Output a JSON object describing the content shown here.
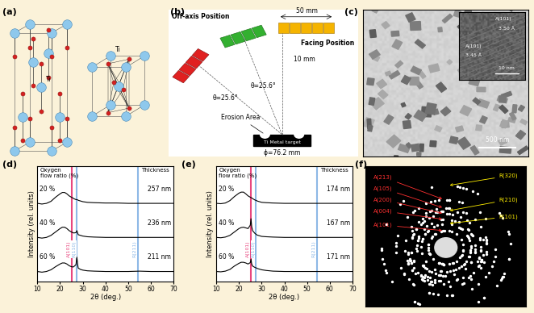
{
  "panels": {
    "a": {
      "label": "(a)",
      "atom_labels": [
        "Ti",
        "Ti"
      ]
    },
    "b": {
      "label": "(b)",
      "texts": {
        "off_axis": "Off-axis Position",
        "facing": "Facing Position",
        "width": "50 mm",
        "theta_1": "θ=25.6°",
        "theta_2": "θ=25.6°",
        "distance": "10 mm",
        "erosion": "Erosion Area",
        "target": "Ti Metal target",
        "diameter": "ϕ=76.2 mm"
      }
    },
    "c": {
      "label": "(c)",
      "scale_bar": "500 nm",
      "inset": {
        "scale_bar": "10 nm",
        "fringes": [
          {
            "plane": "A(101)",
            "spacing": "3.50 Å"
          },
          {
            "plane": "A(101)",
            "spacing": "3.45 Å"
          }
        ]
      }
    },
    "f": {
      "label": "(f)",
      "anatase_rings": [
        "A(213)",
        "A(105)",
        "A(200)",
        "A(004)",
        "A(101)"
      ],
      "rutile_rings": [
        "R(320)",
        "R(210)",
        "R(101)"
      ],
      "anatase_color": "#ff3030",
      "rutile_color": "#ffee00"
    }
  },
  "chart_data": [
    {
      "type": "line",
      "panel_label": "(d)",
      "xlabel": "2θ (deg.)",
      "ylabel": "Intensity (rel. units)",
      "xlim": [
        10,
        70
      ],
      "xticks": [
        10,
        20,
        30,
        40,
        50,
        60,
        70
      ],
      "ylim": [
        0,
        3.4
      ],
      "yticks": [],
      "tick_labels": "x",
      "annotations": {
        "left_header": "Oxygen\nflow ratio (%)",
        "right_header": "Thickness"
      },
      "reference_lines": [
        {
          "label": "A(101)",
          "value": 25.3,
          "color": "#e8477f"
        },
        {
          "label": "R(110)",
          "value": 27.4,
          "color": "#8db8e6"
        },
        {
          "label": "R(211)",
          "value": 54.3,
          "color": "#8db8e6"
        }
      ],
      "x": [
        10,
        12,
        14,
        16,
        18,
        20,
        21,
        22,
        23,
        24,
        25,
        25.3,
        25.6,
        26,
        27,
        27.4,
        27.8,
        28,
        29,
        30,
        32,
        35,
        40,
        45,
        50,
        55,
        60,
        65,
        70
      ],
      "series": [
        {
          "name": "20 %",
          "thickness": "257 nm",
          "color": "#000000",
          "values": [
            2.3,
            2.28,
            2.3,
            2.36,
            2.48,
            2.58,
            2.62,
            2.62,
            2.58,
            2.52,
            2.48,
            2.47,
            2.46,
            2.44,
            2.41,
            2.41,
            2.4,
            2.39,
            2.37,
            2.35,
            2.33,
            2.32,
            2.31,
            2.31,
            2.3,
            2.3,
            2.3,
            2.3,
            2.3
          ]
        },
        {
          "name": "40 %",
          "thickness": "236 nm",
          "color": "#000000",
          "values": [
            1.3,
            1.28,
            1.3,
            1.36,
            1.46,
            1.56,
            1.6,
            1.6,
            1.56,
            1.5,
            1.46,
            1.45,
            1.44,
            1.43,
            1.44,
            1.5,
            1.42,
            1.38,
            1.36,
            1.34,
            1.32,
            1.31,
            1.3,
            1.3,
            1.3,
            1.3,
            1.3,
            1.3,
            1.3
          ]
        },
        {
          "name": "60 %",
          "thickness": "211 nm",
          "color": "#000000",
          "values": [
            0.3,
            0.28,
            0.3,
            0.35,
            0.44,
            0.52,
            0.55,
            0.55,
            0.52,
            0.47,
            0.44,
            0.44,
            0.43,
            0.44,
            0.5,
            0.72,
            0.48,
            0.4,
            0.36,
            0.34,
            0.32,
            0.31,
            0.3,
            0.3,
            0.3,
            0.31,
            0.3,
            0.3,
            0.3
          ]
        }
      ]
    },
    {
      "type": "line",
      "panel_label": "(e)",
      "xlabel": "2θ (deg.)",
      "ylabel": "Intensity (rel. units)",
      "xlim": [
        10,
        70
      ],
      "xticks": [
        10,
        20,
        30,
        40,
        50,
        60,
        70
      ],
      "ylim": [
        0,
        3.4
      ],
      "yticks": [],
      "tick_labels": "x",
      "annotations": {
        "left_header": "Oxygen\nflow ratio (%)",
        "right_header": "Thickness"
      },
      "reference_lines": [
        {
          "label": "A(101)",
          "value": 25.3,
          "color": "#e8477f"
        },
        {
          "label": "R(110)",
          "value": 27.4,
          "color": "#8db8e6"
        },
        {
          "label": "R(211)",
          "value": 54.3,
          "color": "#8db8e6"
        }
      ],
      "x": [
        10,
        12,
        14,
        16,
        18,
        20,
        21,
        22,
        23,
        24,
        25,
        25.3,
        25.6,
        26,
        27,
        27.4,
        27.8,
        28,
        29,
        30,
        32,
        35,
        40,
        45,
        50,
        55,
        60,
        65,
        70
      ],
      "series": [
        {
          "name": "20 %",
          "thickness": "174 nm",
          "color": "#000000",
          "values": [
            2.3,
            2.29,
            2.31,
            2.38,
            2.5,
            2.6,
            2.63,
            2.63,
            2.58,
            2.52,
            2.48,
            2.47,
            2.46,
            2.44,
            2.4,
            2.39,
            2.38,
            2.37,
            2.35,
            2.33,
            2.32,
            2.31,
            2.3,
            2.3,
            2.3,
            2.3,
            2.3,
            2.3,
            2.3
          ]
        },
        {
          "name": "40 %",
          "thickness": "167 nm",
          "color": "#000000",
          "values": [
            1.3,
            1.29,
            1.31,
            1.36,
            1.46,
            1.56,
            1.59,
            1.6,
            1.58,
            1.56,
            1.66,
            1.85,
            1.62,
            1.5,
            1.42,
            1.4,
            1.38,
            1.37,
            1.35,
            1.33,
            1.32,
            1.31,
            1.3,
            1.3,
            1.3,
            1.3,
            1.3,
            1.3,
            1.3
          ]
        },
        {
          "name": "60 %",
          "thickness": "171 nm",
          "color": "#000000",
          "values": [
            0.3,
            0.29,
            0.31,
            0.36,
            0.46,
            0.54,
            0.57,
            0.57,
            0.55,
            0.52,
            0.56,
            0.66,
            0.52,
            0.46,
            0.42,
            0.41,
            0.4,
            0.39,
            0.37,
            0.35,
            0.33,
            0.31,
            0.3,
            0.3,
            0.3,
            0.3,
            0.3,
            0.3,
            0.3
          ]
        }
      ]
    }
  ]
}
